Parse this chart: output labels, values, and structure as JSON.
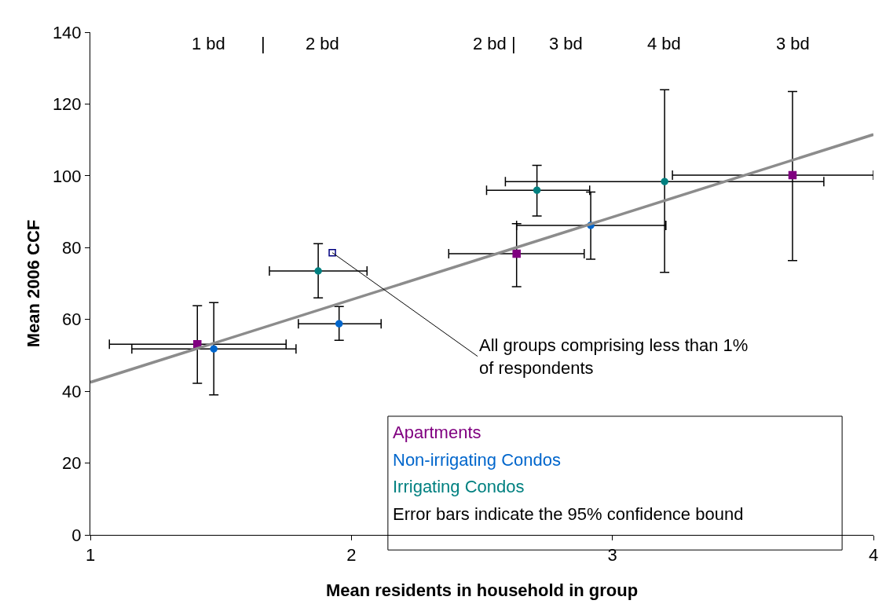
{
  "chart_data": {
    "type": "scatter",
    "xlabel": "Mean residents in household in group",
    "ylabel": "Mean 2006 CCF",
    "xlim": [
      1,
      4
    ],
    "xticks": [
      1,
      2,
      3,
      4
    ],
    "ylim": [
      0,
      140
    ],
    "yticks": [
      0,
      20,
      40,
      60,
      80,
      100,
      120,
      140
    ],
    "legend": "bottom right",
    "series": [
      {
        "name": "Apartments",
        "color": "#800080",
        "marker": "square",
        "x": [
          1.41,
          2.633,
          3.69
        ],
        "values": [
          53.1,
          78.3,
          100.2
        ],
        "errors": [
          [
            42.2,
            63.8
          ],
          [
            69.1,
            86.7
          ],
          [
            76.4,
            123.5
          ]
        ],
        "xerrors": [
          [
            1.073,
            1.75
          ],
          [
            2.373,
            2.892
          ],
          [
            3.23,
            4.0
          ]
        ]
      },
      {
        "name": "Non-irrigating Condos",
        "color": "#0066cc",
        "marker": "circle",
        "x": [
          1.473,
          1.953,
          2.917
        ],
        "values": [
          51.8,
          58.8,
          86.2
        ],
        "errors": [
          [
            39.0,
            64.7
          ],
          [
            54.2,
            63.6
          ],
          [
            76.8,
            95.5
          ]
        ],
        "xerrors": [
          [
            1.159,
            1.788
          ],
          [
            1.797,
            2.114
          ],
          [
            2.633,
            3.205
          ]
        ]
      },
      {
        "name": "Irrigating Condos",
        "color": "#008080",
        "marker": "circle",
        "x": [
          1.873,
          2.711,
          3.2
        ],
        "values": [
          73.5,
          96.0,
          98.4
        ],
        "errors": [
          [
            66.0,
            81.1
          ],
          [
            88.8,
            102.9
          ],
          [
            73.1,
            124.0
          ]
        ],
        "xerrors": [
          [
            1.686,
            2.06
          ],
          [
            2.518,
            2.913
          ],
          [
            2.59,
            3.81
          ]
        ]
      },
      {
        "color": "#000080",
        "marker": "square-open",
        "x": [
          1.927
        ],
        "values": [
          78.6
        ]
      },
      {
        "type": "line",
        "color": "#8c8c8c",
        "marker": "none",
        "x": [
          1,
          4
        ],
        "values": [
          42.5,
          111.5
        ]
      }
    ],
    "annotations": [
      "1 bd",
      "|",
      "2 bd",
      "2 bd |",
      "3 bd",
      "4 bd",
      "3 bd",
      {
        "text": "All groups comprising less than 1%\nof respondents",
        "x": 1.927,
        "y": 78.6
      },
      "Error bars indicate the 95% confidence bound"
    ]
  }
}
